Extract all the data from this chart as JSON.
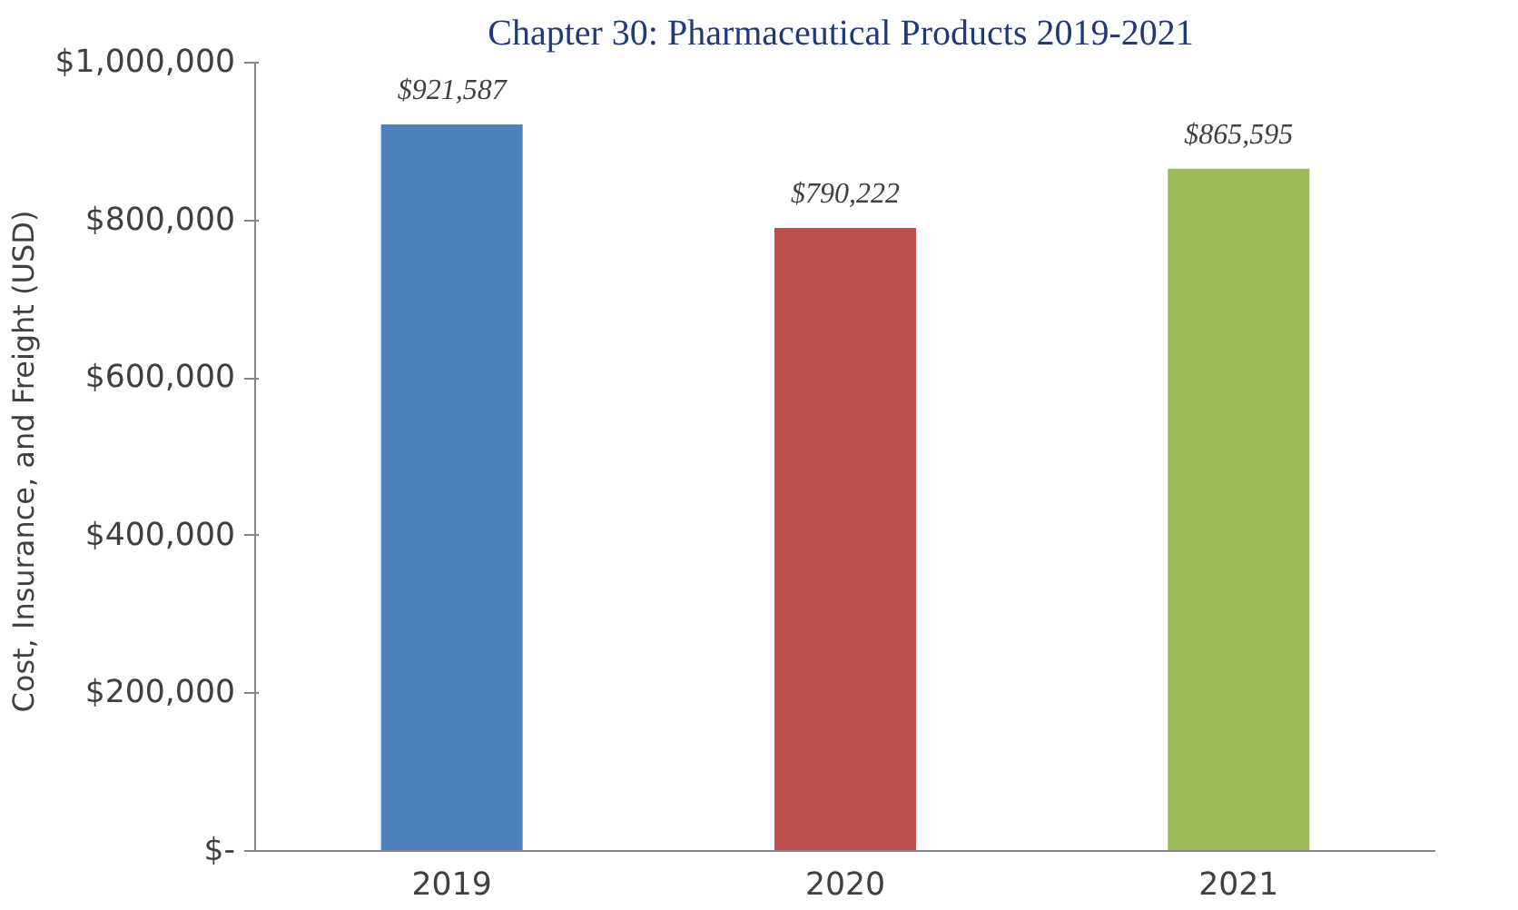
{
  "chart_data": {
    "type": "bar",
    "title": "Chapter 30: Pharmaceutical  Products 2019-2021",
    "ylabel": "Cost, Insurance, and Freight  (USD)",
    "categories": [
      "2019",
      "2020",
      "2021"
    ],
    "values": [
      921587,
      790222,
      865595
    ],
    "colors": [
      "#4f81bd",
      "#c0504d",
      "#9bbb59"
    ],
    "value_labels": [
      "$921,587",
      "$790,222",
      "$865,595"
    ],
    "ylim": [
      0,
      1000000
    ],
    "yticks": [
      {
        "value": 0,
        "label": "$-"
      },
      {
        "value": 200000,
        "label": "$200,000"
      },
      {
        "value": 400000,
        "label": "$400,000"
      },
      {
        "value": 600000,
        "label": "$600,000"
      },
      {
        "value": 800000,
        "label": "$800,000"
      },
      {
        "value": 1000000,
        "label": "$1,000,000"
      }
    ],
    "grid": false
  }
}
